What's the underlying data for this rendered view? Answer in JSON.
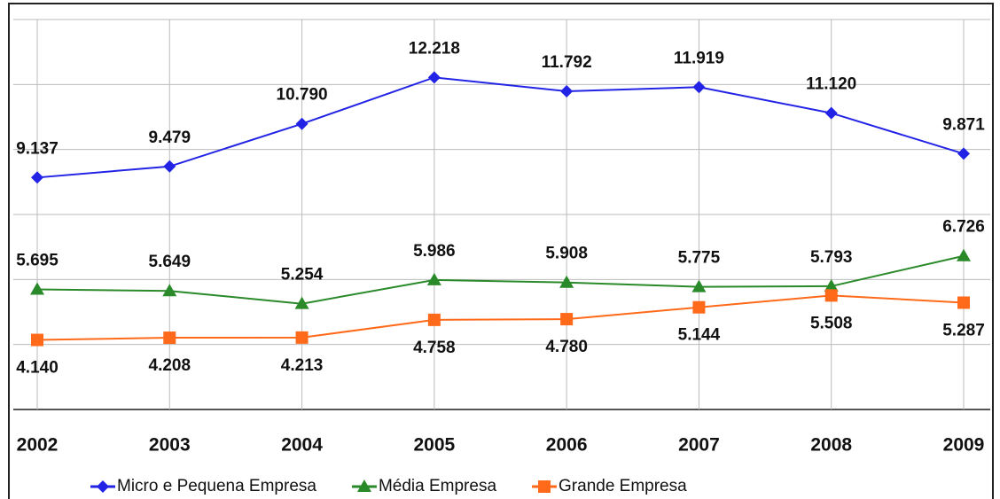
{
  "chart_data": {
    "type": "line",
    "categories": [
      "2002",
      "2003",
      "2004",
      "2005",
      "2006",
      "2007",
      "2008",
      "2009"
    ],
    "series": [
      {
        "name": "Micro e Pequena Empresa",
        "color": "#2323e6",
        "marker": "diamond",
        "values": [
          9137,
          9479,
          10790,
          12218,
          11792,
          11919,
          11120,
          9871
        ],
        "value_labels": [
          "9.137",
          "9.479",
          "10.790",
          "12.218",
          "11.792",
          "11.919",
          "11.120",
          "9.871"
        ]
      },
      {
        "name": "Média Empresa",
        "color": "#2a8a2a",
        "marker": "triangle",
        "values": [
          5695,
          5649,
          5254,
          5986,
          5908,
          5775,
          5793,
          6726
        ],
        "value_labels": [
          "5.695",
          "5.649",
          "5.254",
          "5.986",
          "5.908",
          "5.775",
          "5.793",
          "6.726"
        ]
      },
      {
        "name": "Grande Empresa",
        "color": "#ff6a1a",
        "marker": "square",
        "values": [
          4140,
          4208,
          4213,
          4758,
          4780,
          5144,
          5508,
          5287
        ],
        "value_labels": [
          "4.140",
          "4.208",
          "4.213",
          "4.758",
          "4.780",
          "5.144",
          "5.508",
          "5.287"
        ]
      }
    ],
    "ylim": [
      2000,
      14000
    ],
    "yticks": [
      2000,
      4000,
      6000,
      8000,
      10000,
      12000,
      14000
    ],
    "grid": true
  }
}
